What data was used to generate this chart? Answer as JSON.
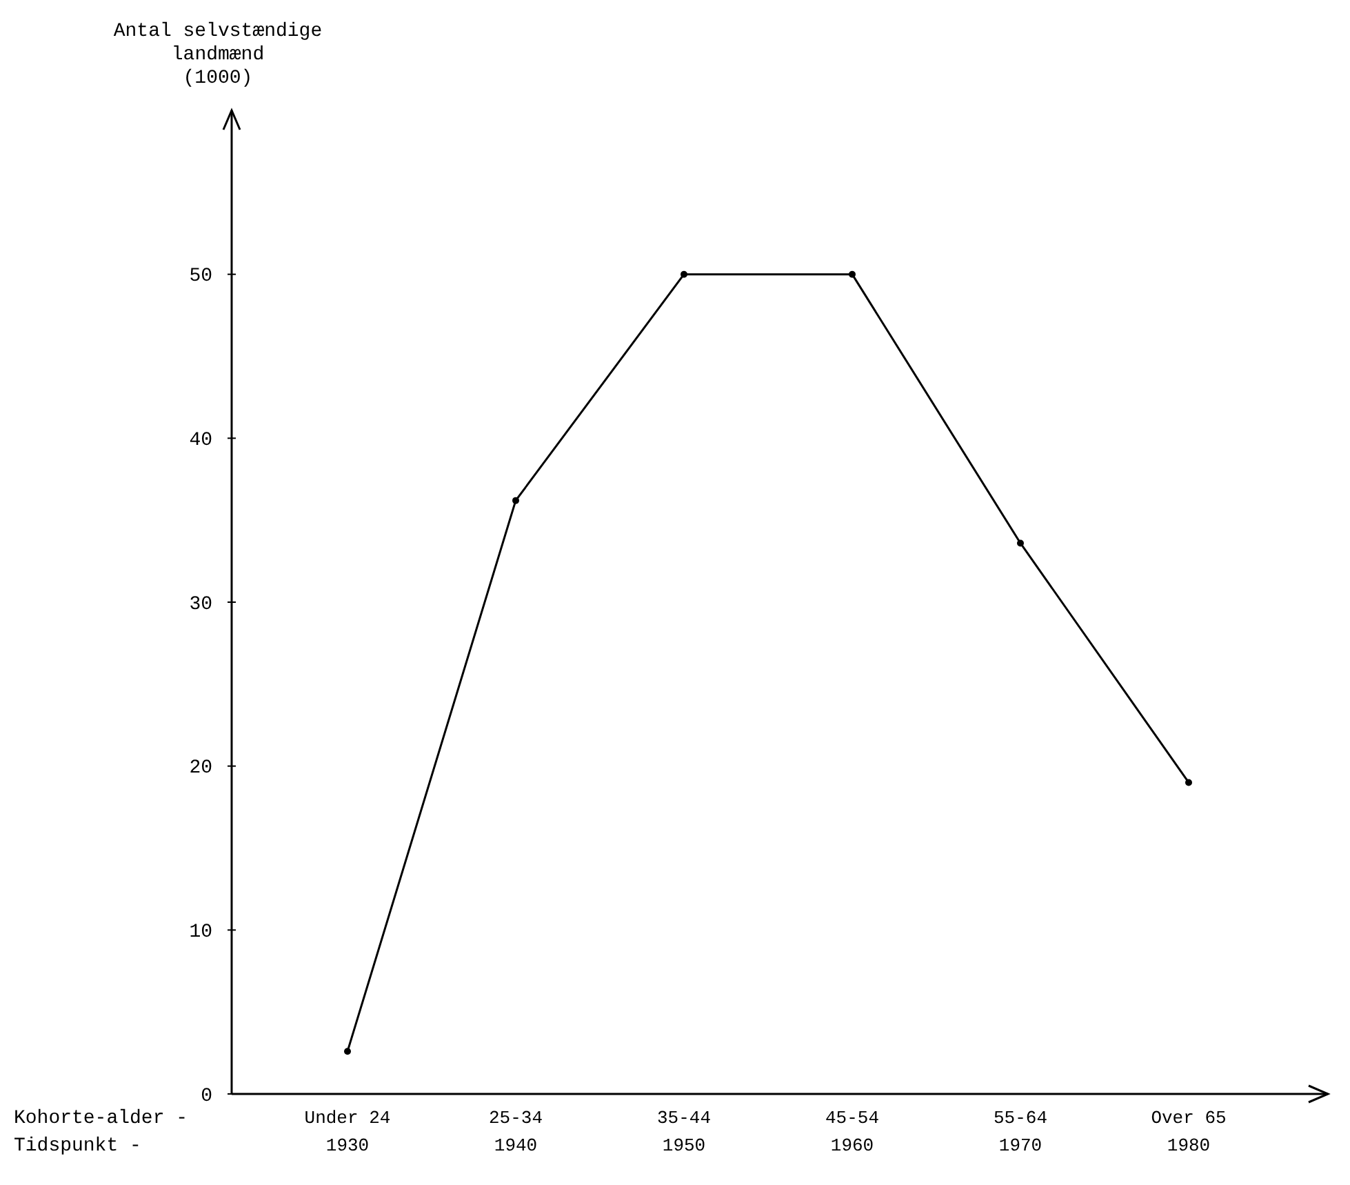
{
  "chart_data": {
    "type": "line",
    "ylabel": "Antal selvstændige\nlandmænd\n(1000)",
    "categories": [
      "Under 24\n1930",
      "25-34\n1940",
      "35-44\n1950",
      "45-54\n1960",
      "55-64\n1970",
      "Over 65\n1980"
    ],
    "series": [
      {
        "color": "#000000",
        "values": [
          2.6,
          36.2,
          50,
          50,
          33.6,
          19
        ]
      }
    ],
    "ylim": [
      0,
      60
    ],
    "yticks": [
      0,
      10,
      20,
      30,
      40,
      50
    ],
    "marker": "circle",
    "line_style": "solid",
    "grid": false,
    "annotations": [
      "Kohorte-alder -",
      "Tidspunkt -"
    ]
  }
}
